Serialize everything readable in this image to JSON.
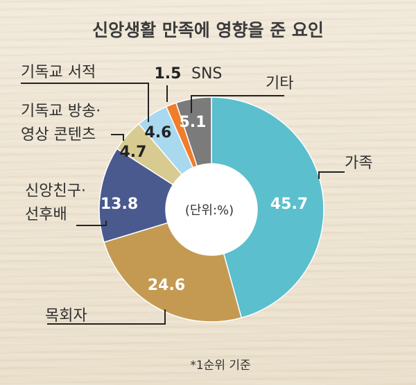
{
  "chart_data": {
    "type": "pie",
    "title": "신앙생활 만족에 영향을 준 요인",
    "unit_note": "(단위:%)",
    "footnote": "*1순위 기준",
    "slices": [
      {
        "label": "가족",
        "value": 45.7,
        "color": "#5bbfcd",
        "value_color": "white"
      },
      {
        "label": "목회자",
        "value": 24.6,
        "color": "#c49a52",
        "value_color": "white"
      },
      {
        "label": "신앙친구·선후배",
        "label_lines": [
          "신앙친구·",
          "선후배"
        ],
        "value": 13.8,
        "color": "#4a5a8e",
        "value_color": "white"
      },
      {
        "label": "기독교 방송·영상 콘텐츠",
        "label_lines": [
          "기독교 방송·",
          "영상 콘텐츠"
        ],
        "value": 4.7,
        "color": "#d8cb92",
        "value_color": "dark"
      },
      {
        "label": "기독교 서적",
        "value": 4.6,
        "color": "#a9d9ef",
        "value_color": "dark"
      },
      {
        "label": "SNS",
        "value": 1.5,
        "color": "#ef7d2b",
        "value_color": "dark"
      },
      {
        "label": "기타",
        "value": 5.1,
        "color": "#7b7b7b",
        "value_color": "white"
      }
    ]
  }
}
